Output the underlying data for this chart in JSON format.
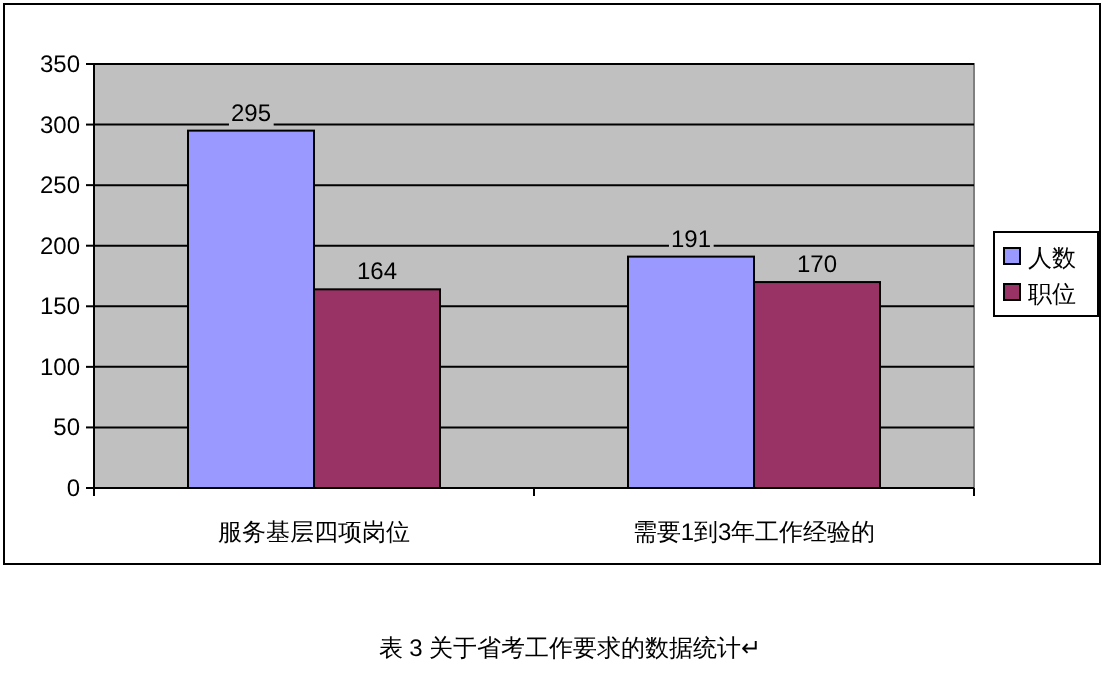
{
  "chart_data": {
    "type": "bar",
    "categories": [
      "服务基层四项岗位",
      "需要1到3年工作经验的"
    ],
    "series": [
      {
        "name": "人数",
        "color": "#9999ff",
        "values": [
          295,
          191
        ]
      },
      {
        "name": "职位",
        "color": "#993366",
        "values": [
          164,
          170
        ]
      }
    ],
    "ylim": [
      0,
      350
    ],
    "yticks": [
      0,
      50,
      100,
      150,
      200,
      250,
      300,
      350
    ],
    "grid": "y",
    "legend": "right",
    "data_labels": true,
    "annotations": [
      "表 3 关于省考工作要求的数据统计↵"
    ]
  }
}
